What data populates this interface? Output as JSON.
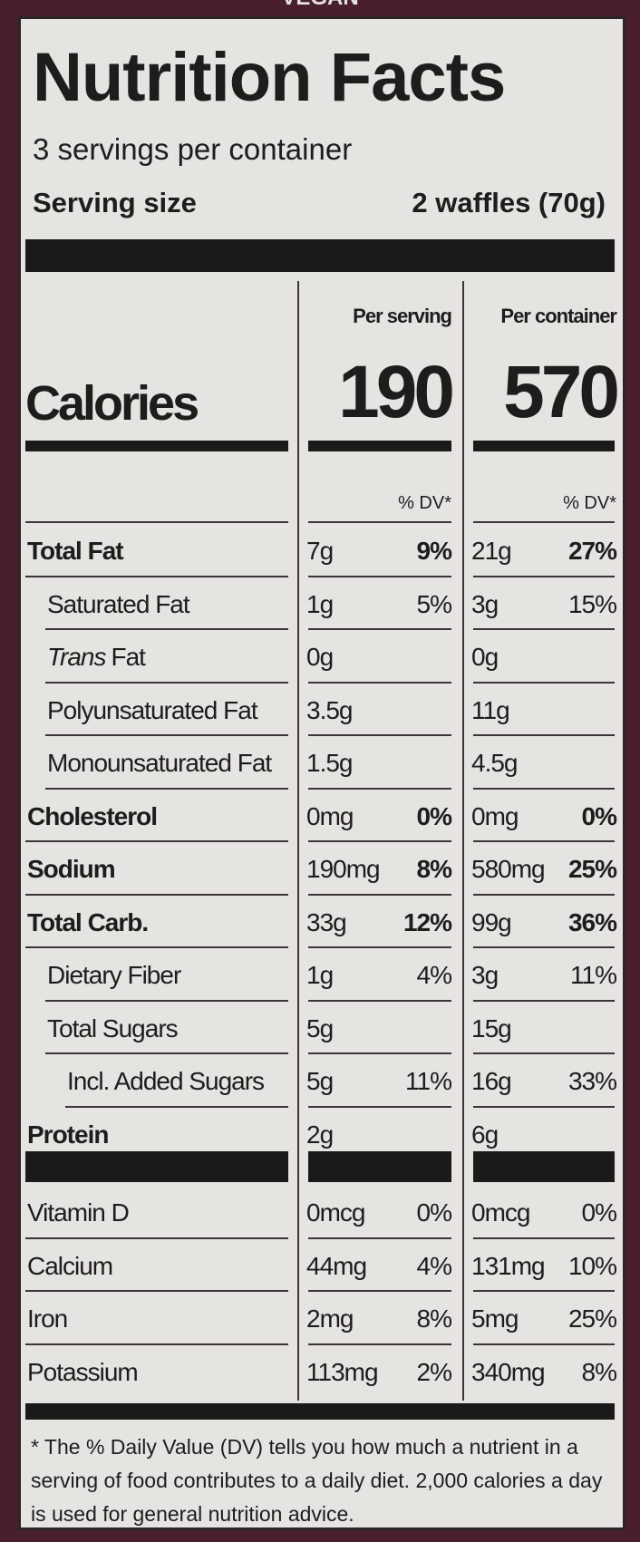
{
  "top_text": "VEGAN",
  "title": "Nutrition Facts",
  "servings": "3 servings per container",
  "serving_size": {
    "label": "Serving size",
    "value": "2 waffles (70g)"
  },
  "columns": [
    "Per serving",
    "Per container"
  ],
  "calories": {
    "label": "Calories",
    "values": [
      "190",
      "570"
    ]
  },
  "dv_header": [
    "% DV*",
    "% DV*"
  ],
  "nutrients": [
    {
      "name": "Total Fat",
      "indent": 0,
      "bold": true,
      "serving": [
        "7g",
        "9%"
      ],
      "container": [
        "21g",
        "27%"
      ]
    },
    {
      "name": "Saturated Fat",
      "indent": 1,
      "bold": false,
      "serving": [
        "1g",
        "5%"
      ],
      "container": [
        "3g",
        "15%"
      ]
    },
    {
      "italic_prefix": "Trans",
      "name": "Fat",
      "indent": 1,
      "bold": false,
      "serving": [
        "0g"
      ],
      "container": [
        "0g"
      ]
    },
    {
      "name": "Polyunsaturated Fat",
      "indent": 1,
      "bold": false,
      "serving": [
        "3.5g"
      ],
      "container": [
        "11g"
      ]
    },
    {
      "name": "Monounsaturated Fat",
      "indent": 1,
      "bold": false,
      "serving": [
        "1.5g"
      ],
      "container": [
        "4.5g"
      ]
    },
    {
      "name": "Cholesterol",
      "indent": 0,
      "bold": true,
      "serving": [
        "0mg",
        "0%"
      ],
      "container": [
        "0mg",
        "0%"
      ]
    },
    {
      "name": "Sodium",
      "indent": 0,
      "bold": true,
      "serving": [
        "190mg",
        "8%"
      ],
      "container": [
        "580mg",
        "25%"
      ]
    },
    {
      "name": "Total Carb.",
      "indent": 0,
      "bold": true,
      "serving": [
        "33g",
        "12%"
      ],
      "container": [
        "99g",
        "36%"
      ]
    },
    {
      "name": "Dietary Fiber",
      "indent": 1,
      "bold": false,
      "serving": [
        "1g",
        "4%"
      ],
      "container": [
        "3g",
        "11%"
      ]
    },
    {
      "name": "Total Sugars",
      "indent": 1,
      "bold": false,
      "serving": [
        "5g"
      ],
      "container": [
        "15g"
      ]
    },
    {
      "name": "Incl. Added Sugars",
      "indent": 2,
      "bold": false,
      "serving": [
        "5g",
        "11%"
      ],
      "container": [
        "16g",
        "33%"
      ]
    },
    {
      "name": "Protein",
      "indent": 0,
      "bold": true,
      "serving": [
        "2g"
      ],
      "container": [
        "6g"
      ]
    }
  ],
  "vitamins": [
    {
      "name": "Vitamin D",
      "serving": [
        "0mcg",
        "0%"
      ],
      "container": [
        "0mcg",
        "0%"
      ]
    },
    {
      "name": "Calcium",
      "serving": [
        "44mg",
        "4%"
      ],
      "container": [
        "131mg",
        "10%"
      ]
    },
    {
      "name": "Iron",
      "serving": [
        "2mg",
        "8%"
      ],
      "container": [
        "5mg",
        "25%"
      ]
    },
    {
      "name": "Potassium",
      "serving": [
        "113mg",
        "2%"
      ],
      "container": [
        "340mg",
        "8%"
      ]
    }
  ],
  "footnote": "* The % Daily Value (DV) tells you how much a nutrient in a serving of food contributes to a daily diet. 2,000 calories a day is used for general nutrition advice."
}
